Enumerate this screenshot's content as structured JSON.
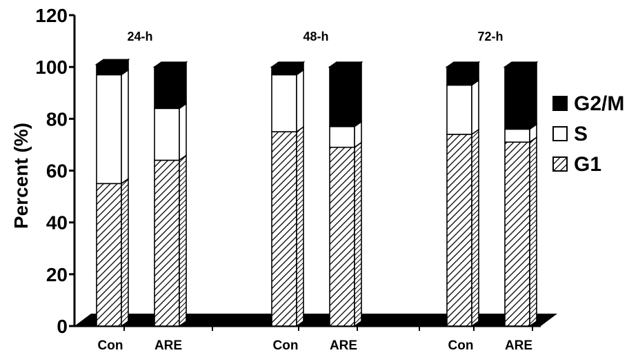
{
  "chart_data": {
    "type": "bar",
    "stacked": true,
    "three_d": true,
    "ylabel": "Percent (%)",
    "ylim": [
      0,
      120
    ],
    "yticks": [
      "0",
      "20",
      "40",
      "60",
      "80",
      "100",
      "120"
    ],
    "groups": [
      {
        "label": "24-h",
        "bars": [
          {
            "category": "Con",
            "G1": 55,
            "S": 42,
            "G2/M": 4
          },
          {
            "category": "ARE",
            "G1": 64,
            "S": 20,
            "G2/M": 16
          }
        ]
      },
      {
        "label": "48-h",
        "bars": [
          {
            "category": "Con",
            "G1": 75,
            "S": 22,
            "G2/M": 3
          },
          {
            "category": "ARE",
            "G1": 69,
            "S": 8,
            "G2/M": 23
          }
        ]
      },
      {
        "label": "72-h",
        "bars": [
          {
            "category": "Con",
            "G1": 74,
            "S": 19,
            "G2/M": 7
          },
          {
            "category": "ARE",
            "G1": 71,
            "S": 5,
            "G2/M": 24
          }
        ]
      }
    ],
    "series": [
      {
        "name": "G1",
        "pattern": "diagonal-hatch",
        "color": "#ffffff"
      },
      {
        "name": "S",
        "pattern": "solid",
        "color": "#ffffff"
      },
      {
        "name": "G2/M",
        "pattern": "solid",
        "color": "#000000"
      }
    ],
    "legend": {
      "placement": "right",
      "order": [
        "G2/M",
        "S",
        "G1"
      ]
    },
    "floor_color": "#000000"
  }
}
